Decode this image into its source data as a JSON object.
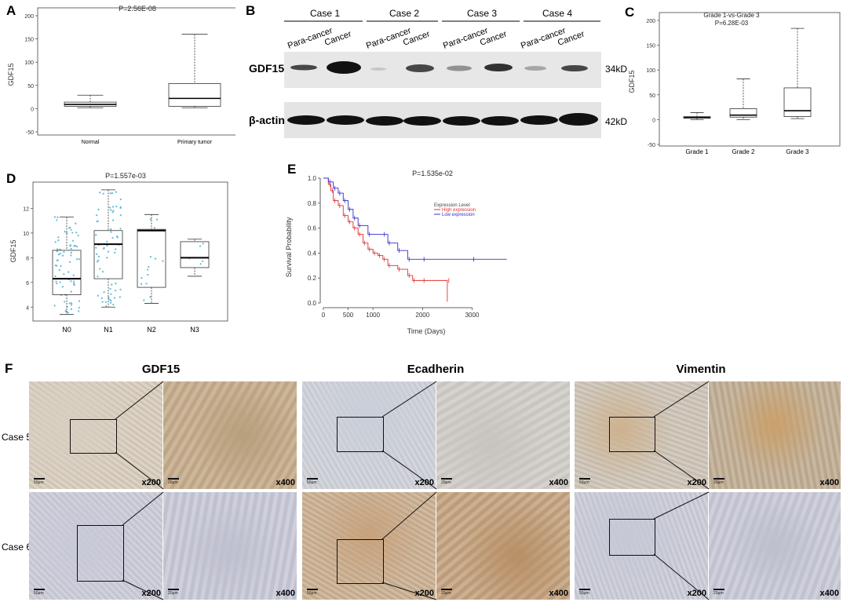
{
  "panels": {
    "a": {
      "label": "A",
      "p": "P=2.56E-08",
      "ylabel": "GDF15",
      "yticks": [
        "200",
        "150",
        "100",
        "50",
        "0",
        "-50"
      ],
      "groups": [
        "Normal",
        "Primary tumor"
      ]
    },
    "b": {
      "label": "B",
      "cases": [
        "Case 1",
        "Case 2",
        "Case 3",
        "Case 4"
      ],
      "lanes": [
        "Para-cancer",
        "Cancer",
        "Para-cancer",
        "Cancer",
        "Para-cancer",
        "Cancer",
        "Para-cancer",
        "Cancer"
      ],
      "gdf15": "GDF15",
      "actin": "β-actin",
      "kd1": "34kD",
      "kd2": "42kD"
    },
    "c": {
      "label": "C",
      "title1": "Grade 1-vs-Grade 3",
      "title2": "P=6.28E-03",
      "ylabel": "GDF15",
      "yticks": [
        "200",
        "150",
        "100",
        "50",
        "0",
        "-50"
      ],
      "groups": [
        "Grade 1",
        "Grade 2",
        "Grade 3"
      ]
    },
    "d": {
      "label": "D",
      "p": "P=1.557e-03",
      "ylabel": "GDF15",
      "yticks": [
        "12",
        "10",
        "8",
        "6",
        "4"
      ],
      "groups": [
        "N0",
        "N1",
        "N2",
        "N3"
      ]
    },
    "e": {
      "label": "E",
      "p": "P=1.535e-02",
      "ylabel": "Survival Probability",
      "xlabel": "Time (Days)",
      "yticks": [
        "1.0",
        "0.8",
        "0.6",
        "0.4",
        "0.2",
        "0.0"
      ],
      "xticks": [
        "0",
        "500",
        "1000",
        "2000",
        "3000"
      ],
      "legend_title": "Expression Level",
      "legend_high": "High expression",
      "legend_low": "Low expression",
      "high_color": "#e03030",
      "low_color": "#3030d0"
    },
    "f": {
      "label": "F",
      "cols": [
        "GDF15",
        "Ecadherin",
        "Vimentin"
      ],
      "rows": [
        "Case 5",
        "Case 6"
      ],
      "mag_low": "x200",
      "mag_high": "x400",
      "scale_low": "50μm",
      "scale_high": "20μm"
    }
  },
  "chart_data": [
    {
      "type": "box",
      "panel": "A",
      "title": "P=2.56E-08",
      "ylabel": "GDF15",
      "ylim": [
        -50,
        200
      ],
      "categories": [
        "Normal",
        "Primary tumor"
      ],
      "boxes": [
        {
          "min": 2,
          "q1": 5,
          "median": 9,
          "q3": 14,
          "max": 29
        },
        {
          "min": 2,
          "q1": 5,
          "median": 22,
          "q3": 54,
          "max": 160
        }
      ]
    },
    {
      "type": "box",
      "panel": "C",
      "title": "Grade 1-vs-Grade 3 P=6.28E-03",
      "ylabel": "GDF15",
      "ylim": [
        -50,
        200
      ],
      "categories": [
        "Grade 1",
        "Grade 2",
        "Grade 3"
      ],
      "boxes": [
        {
          "min": 0,
          "q1": 3,
          "median": 4,
          "q3": 6,
          "max": 14
        },
        {
          "min": 0,
          "q1": 5,
          "median": 9,
          "q3": 22,
          "max": 82
        },
        {
          "min": 2,
          "q1": 6,
          "median": 18,
          "q3": 64,
          "max": 184
        }
      ]
    },
    {
      "type": "box",
      "panel": "D",
      "title": "P=1.557e-03",
      "ylabel": "GDF15",
      "ylim": [
        3,
        14
      ],
      "categories": [
        "N0",
        "N1",
        "N2",
        "N3"
      ],
      "boxes": [
        {
          "min": 3.4,
          "q1": 5.0,
          "median": 6.3,
          "q3": 8.6,
          "max": 11.3
        },
        {
          "min": 4.0,
          "q1": 6.3,
          "median": 9.1,
          "q3": 10.2,
          "max": 13.5
        },
        {
          "min": 4.3,
          "q1": 5.6,
          "median": 10.2,
          "q3": 10.3,
          "max": 11.5
        },
        {
          "min": 6.5,
          "q1": 7.2,
          "median": 8.0,
          "q3": 9.3,
          "max": 9.5
        }
      ]
    },
    {
      "type": "line",
      "panel": "E",
      "title": "P=1.535e-02",
      "xlabel": "Time (Days)",
      "ylabel": "Survival Probability",
      "xlim": [
        0,
        3800
      ],
      "ylim": [
        0,
        1
      ],
      "series": [
        {
          "name": "High expression",
          "x": [
            0,
            100,
            150,
            200,
            300,
            400,
            500,
            600,
            700,
            800,
            900,
            1000,
            1100,
            1200,
            1300,
            1500,
            1700,
            1800,
            2000,
            2500,
            2500
          ],
          "y": [
            1,
            0.95,
            0.9,
            0.82,
            0.78,
            0.7,
            0.65,
            0.6,
            0.55,
            0.48,
            0.43,
            0.4,
            0.38,
            0.35,
            0.3,
            0.27,
            0.22,
            0.18,
            0.18,
            0.18,
            0.01
          ]
        },
        {
          "name": "Low expression",
          "x": [
            0,
            100,
            200,
            300,
            400,
            500,
            600,
            700,
            900,
            1200,
            1300,
            1500,
            1700,
            2000,
            3000,
            3700
          ],
          "y": [
            1,
            0.97,
            0.92,
            0.88,
            0.82,
            0.75,
            0.68,
            0.62,
            0.55,
            0.55,
            0.48,
            0.42,
            0.35,
            0.35,
            0.35,
            0.35
          ]
        }
      ]
    }
  ]
}
